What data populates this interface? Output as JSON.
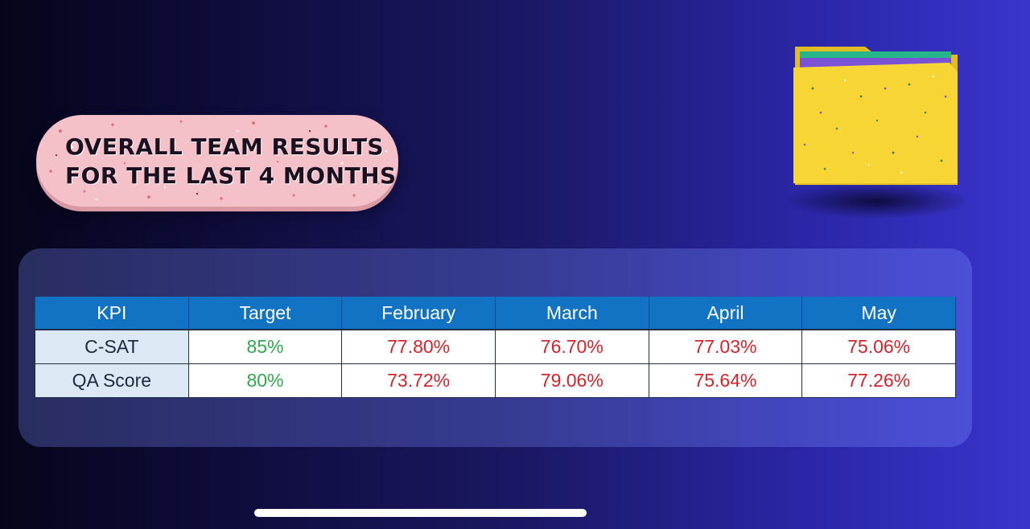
{
  "title": {
    "line1": "OVERALL TEAM RESULTS",
    "line2": "FOR THE LAST 4 MONTHS"
  },
  "table": {
    "headers": [
      "KPI",
      "Target",
      "February",
      "March",
      "April",
      "May"
    ],
    "rows": [
      {
        "kpi": "C-SAT",
        "target": "85%",
        "values": [
          "77.80%",
          "76.70%",
          "77.03%",
          "75.06%"
        ]
      },
      {
        "kpi": "QA Score",
        "target": "80%",
        "values": [
          "73.72%",
          "79.06%",
          "75.64%",
          "77.26%"
        ]
      }
    ]
  },
  "colors": {
    "header_bg": "#1273c4",
    "target_text": "#2eaa4a",
    "below_target_text": "#d8222a",
    "pill_bg": "#f5c1c8",
    "folder_body": "#f6d534"
  },
  "icons": {
    "folder": "folder-icon"
  }
}
